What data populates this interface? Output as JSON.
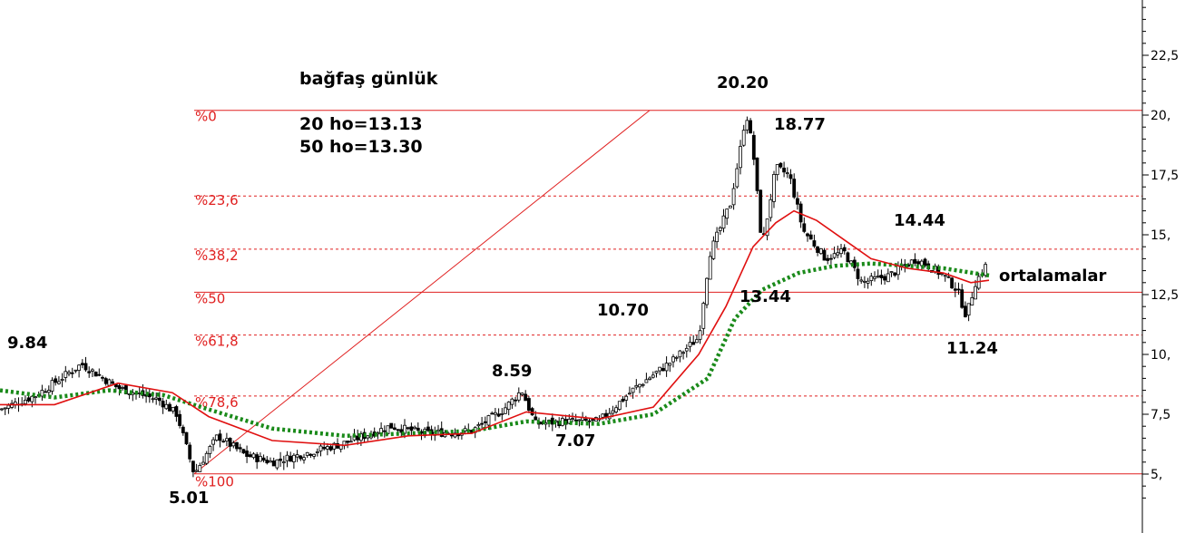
{
  "chart_data": {
    "type": "candlestick",
    "title": "bağfaş günlük",
    "info_lines": [
      "20 ho=13.13",
      "50 ho=13.30"
    ],
    "y_axis": {
      "ticks": [
        5,
        7.5,
        10,
        12.5,
        15,
        17.5,
        20,
        22.5
      ],
      "tick_labels": [
        "5,",
        "7,5",
        "10,",
        "12,5",
        "15,",
        "17,5",
        "20,",
        "22,5"
      ],
      "range": [
        3.5,
        25.2
      ]
    },
    "colors": {
      "fib": "#e02020",
      "ma20": "#e01010",
      "ma50": "#1a8a1a",
      "candle": "#000000",
      "axis": "#000000"
    },
    "fibonacci": {
      "high": 20.2,
      "low": 5.01,
      "levels": [
        {
          "label": "%0",
          "value": 20.2,
          "style": "solid"
        },
        {
          "label": "%23,6",
          "value": 16.62,
          "style": "dashed"
        },
        {
          "label": "%38,2",
          "value": 14.4,
          "style": "dashed"
        },
        {
          "label": "%50",
          "value": 12.6,
          "style": "solid"
        },
        {
          "label": "%61,8",
          "value": 10.81,
          "style": "dashed"
        },
        {
          "label": "%78,6",
          "value": 8.26,
          "style": "dashed"
        },
        {
          "label": "%100",
          "value": 5.01,
          "style": "solid"
        }
      ]
    },
    "annotations": [
      {
        "text": "9.84",
        "value": 9.84
      },
      {
        "text": "5.01",
        "value": 5.01
      },
      {
        "text": "8.59",
        "value": 8.59
      },
      {
        "text": "7.07",
        "value": 7.07
      },
      {
        "text": "10.70",
        "value": 10.7
      },
      {
        "text": "20.20",
        "value": 20.2
      },
      {
        "text": "18.77",
        "value": 18.77
      },
      {
        "text": "13.44",
        "value": 13.44
      },
      {
        "text": "14.44",
        "value": 14.44
      },
      {
        "text": "11.24",
        "value": 11.24
      },
      {
        "text": "ortalamalar",
        "value": null
      }
    ],
    "ma20_anchors": [
      [
        0,
        7.9
      ],
      [
        60,
        7.9
      ],
      [
        130,
        8.8
      ],
      [
        190,
        8.4
      ],
      [
        230,
        7.4
      ],
      [
        300,
        6.4
      ],
      [
        380,
        6.2
      ],
      [
        450,
        6.6
      ],
      [
        520,
        6.7
      ],
      [
        580,
        7.6
      ],
      [
        660,
        7.3
      ],
      [
        720,
        7.8
      ],
      [
        770,
        10.0
      ],
      [
        800,
        12.0
      ],
      [
        830,
        14.5
      ],
      [
        855,
        15.5
      ],
      [
        875,
        16.0
      ],
      [
        900,
        15.6
      ],
      [
        930,
        14.8
      ],
      [
        960,
        14.0
      ],
      [
        1000,
        13.6
      ],
      [
        1040,
        13.4
      ],
      [
        1070,
        13.0
      ],
      [
        1090,
        13.1
      ]
    ],
    "ma50_anchors": [
      [
        0,
        8.5
      ],
      [
        60,
        8.2
      ],
      [
        120,
        8.5
      ],
      [
        180,
        8.3
      ],
      [
        230,
        7.7
      ],
      [
        300,
        6.9
      ],
      [
        380,
        6.6
      ],
      [
        450,
        6.7
      ],
      [
        520,
        6.8
      ],
      [
        580,
        7.2
      ],
      [
        660,
        7.1
      ],
      [
        720,
        7.5
      ],
      [
        780,
        9.0
      ],
      [
        810,
        11.5
      ],
      [
        840,
        12.7
      ],
      [
        880,
        13.4
      ],
      [
        920,
        13.7
      ],
      [
        960,
        13.8
      ],
      [
        1000,
        13.7
      ],
      [
        1040,
        13.6
      ],
      [
        1090,
        13.3
      ]
    ],
    "price_anchors": [
      [
        0,
        7.7
      ],
      [
        40,
        8.3
      ],
      [
        90,
        9.6
      ],
      [
        130,
        8.6
      ],
      [
        175,
        8.1
      ],
      [
        195,
        7.5
      ],
      [
        214,
        5.01
      ],
      [
        240,
        6.6
      ],
      [
        270,
        5.8
      ],
      [
        300,
        5.5
      ],
      [
        340,
        5.9
      ],
      [
        380,
        6.3
      ],
      [
        430,
        7.0
      ],
      [
        470,
        6.7
      ],
      [
        520,
        6.8
      ],
      [
        555,
        7.7
      ],
      [
        575,
        8.5
      ],
      [
        590,
        7.1
      ],
      [
        620,
        7.2
      ],
      [
        660,
        7.2
      ],
      [
        700,
        8.6
      ],
      [
        740,
        9.7
      ],
      [
        770,
        10.7
      ],
      [
        782,
        14.2
      ],
      [
        805,
        16.3
      ],
      [
        818,
        19.0
      ],
      [
        822,
        20.2
      ],
      [
        830,
        18.5
      ],
      [
        840,
        14.5
      ],
      [
        855,
        17.8
      ],
      [
        870,
        17.5
      ],
      [
        885,
        15.2
      ],
      [
        910,
        14.0
      ],
      [
        930,
        14.3
      ],
      [
        950,
        13.0
      ],
      [
        980,
        13.3
      ],
      [
        1010,
        14.0
      ],
      [
        1040,
        13.3
      ],
      [
        1055,
        12.7
      ],
      [
        1065,
        11.6
      ],
      [
        1075,
        13.0
      ],
      [
        1088,
        13.8
      ]
    ]
  }
}
